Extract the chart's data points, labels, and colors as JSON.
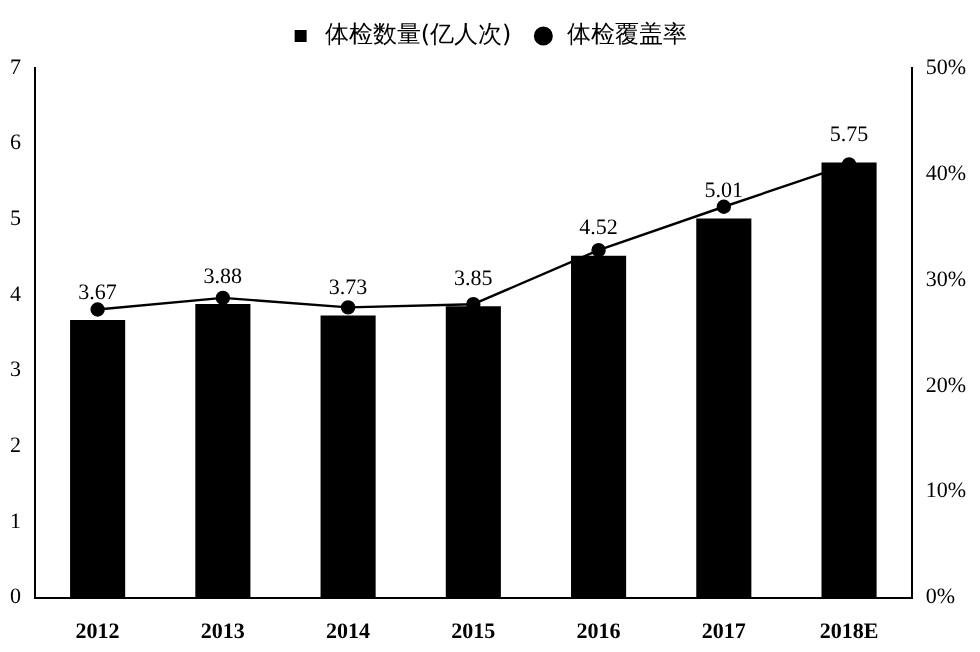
{
  "chart_data": {
    "type": "bar",
    "categories": [
      "2012",
      "2013",
      "2014",
      "2015",
      "2016",
      "2017",
      "2018E"
    ],
    "series": [
      {
        "name": "体检数量(亿人次)",
        "color": "#000000",
        "values": [
          3.67,
          3.88,
          3.73,
          3.85,
          4.52,
          5.01,
          5.75
        ],
        "value_labels": [
          "3.67",
          "3.88",
          "3.73",
          "3.85",
          "4.52",
          "5.01",
          "5.75"
        ]
      },
      {
        "name": "体检覆盖率",
        "type": "line",
        "axis": "y2",
        "color": "#000000",
        "values": [
          27.2,
          28.3,
          27.4,
          27.7,
          32.8,
          36.9,
          40.9
        ]
      }
    ],
    "ylim": [
      0,
      7
    ],
    "yticks": [
      0,
      1,
      2,
      3,
      4,
      5,
      6,
      7
    ],
    "y2lim": [
      0,
      50
    ],
    "y2ticks": [
      {
        "value": 0,
        "label": "0%"
      },
      {
        "value": 10,
        "label": "10%"
      },
      {
        "value": 20,
        "label": "20%"
      },
      {
        "value": 30,
        "label": "30%"
      },
      {
        "value": 40,
        "label": "40%"
      },
      {
        "value": 50,
        "label": "50%"
      }
    ],
    "legend": "top",
    "marker": "circle",
    "grid": false
  }
}
